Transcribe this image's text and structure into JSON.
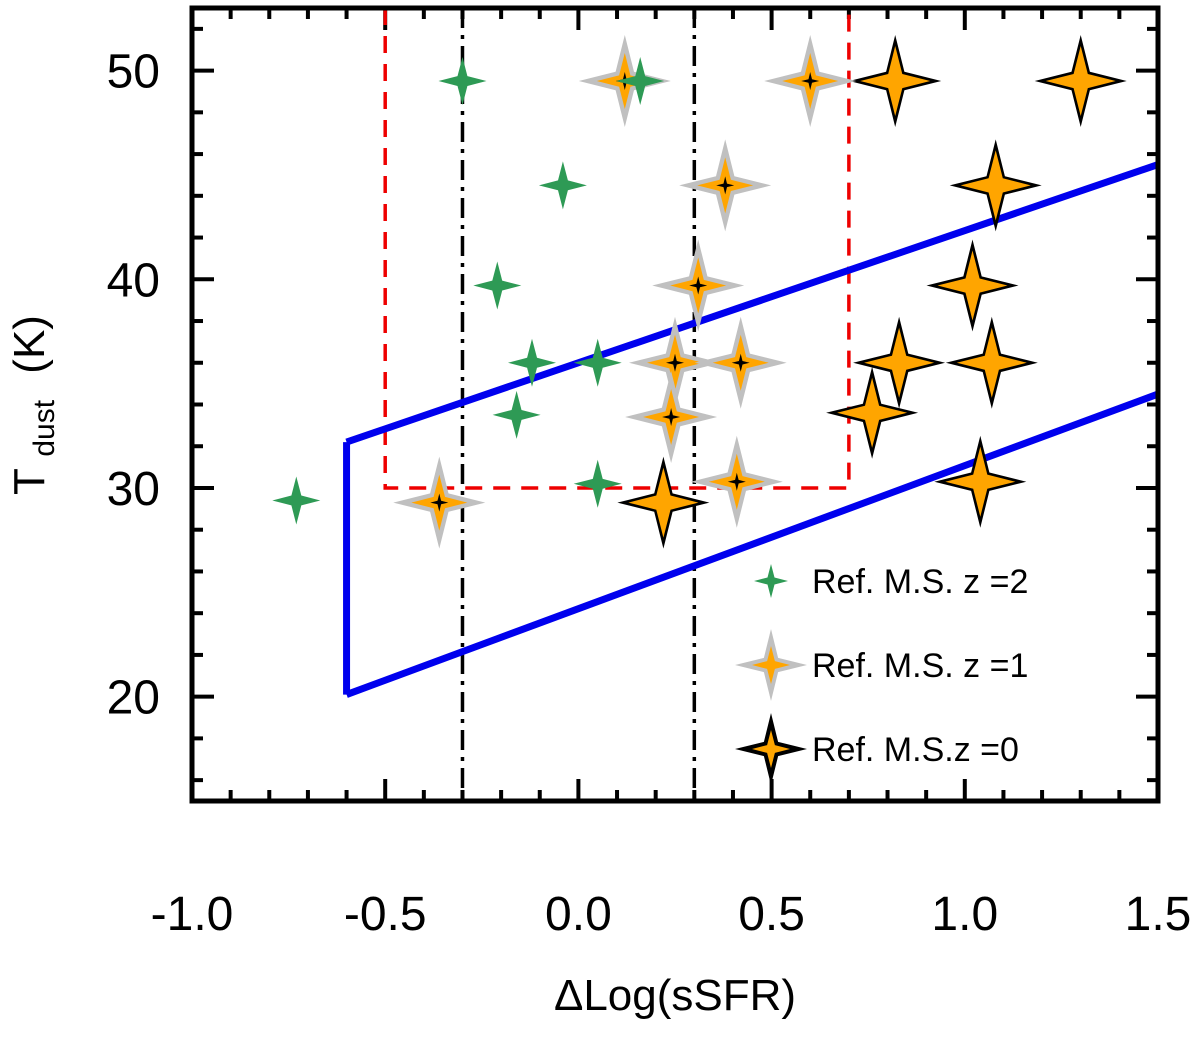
{
  "chart_data": {
    "type": "scatter",
    "xlabel": "ΔLog(sSFR)",
    "ylabel_main": "T",
    "ylabel_sub": "dust",
    "ylabel_unit": "(K)",
    "xlim": [
      -1.0,
      1.5
    ],
    "ylim": [
      15,
      53
    ],
    "xticks": [
      -1.0,
      -0.5,
      0.0,
      0.5,
      1.0,
      1.5
    ],
    "xtick_labels": [
      "-1.0",
      "-0.5",
      "0.0",
      "0.5",
      "1.0",
      "1.5"
    ],
    "yticks": [
      20,
      30,
      40,
      50
    ],
    "ytick_labels": [
      "20",
      "30",
      "40",
      "50"
    ],
    "vertical_lines": [
      -0.3,
      0.3
    ],
    "box": {
      "x": [
        -0.5,
        0.7
      ],
      "y": [
        30,
        53
      ]
    },
    "region_lines": [
      {
        "x": [
          -0.6,
          1.5
        ],
        "y": [
          32.2,
          45.5
        ]
      },
      {
        "x": [
          -0.6,
          1.5
        ],
        "y": [
          20.1,
          34.5
        ]
      },
      {
        "x": [
          -0.6,
          -0.6
        ],
        "y": [
          20.1,
          32.2
        ]
      }
    ],
    "colors": {
      "green": "#2e9a55",
      "orange": "#ffa500",
      "gray": "#c0c0c0",
      "black": "#000000",
      "blue": "#0000ee",
      "red": "#ee0000"
    },
    "series": [
      {
        "name": "Ref. M.S. z =2",
        "values": [
          [
            -0.73,
            29.4
          ],
          [
            -0.3,
            49.5
          ],
          [
            -0.04,
            44.5
          ],
          [
            -0.21,
            39.7
          ],
          [
            -0.12,
            36.0
          ],
          [
            -0.16,
            33.5
          ],
          [
            0.05,
            36.0
          ],
          [
            0.05,
            30.2
          ],
          [
            0.16,
            49.5
          ]
        ]
      },
      {
        "name": "Ref. M.S. z =1",
        "values": [
          [
            -0.36,
            29.3
          ],
          [
            0.12,
            49.5
          ],
          [
            0.6,
            49.5
          ],
          [
            0.38,
            44.5
          ],
          [
            0.31,
            39.7
          ],
          [
            0.25,
            36.0
          ],
          [
            0.42,
            36.0
          ],
          [
            0.24,
            33.4
          ],
          [
            0.41,
            30.3
          ]
        ]
      },
      {
        "name": "Ref. M.S.z =0",
        "values": [
          [
            0.82,
            49.5
          ],
          [
            1.3,
            49.5
          ],
          [
            1.08,
            44.5
          ],
          [
            1.02,
            39.7
          ],
          [
            0.83,
            36.0
          ],
          [
            1.07,
            36.0
          ],
          [
            0.76,
            33.6
          ],
          [
            0.22,
            29.3
          ],
          [
            1.04,
            30.3
          ]
        ]
      }
    ],
    "legend": [
      {
        "label": "Ref. M.S. z =2"
      },
      {
        "label": "Ref. M.S. z =1"
      },
      {
        "label": "Ref. M.S.z =0"
      }
    ],
    "legend_position": "bottom-right"
  }
}
